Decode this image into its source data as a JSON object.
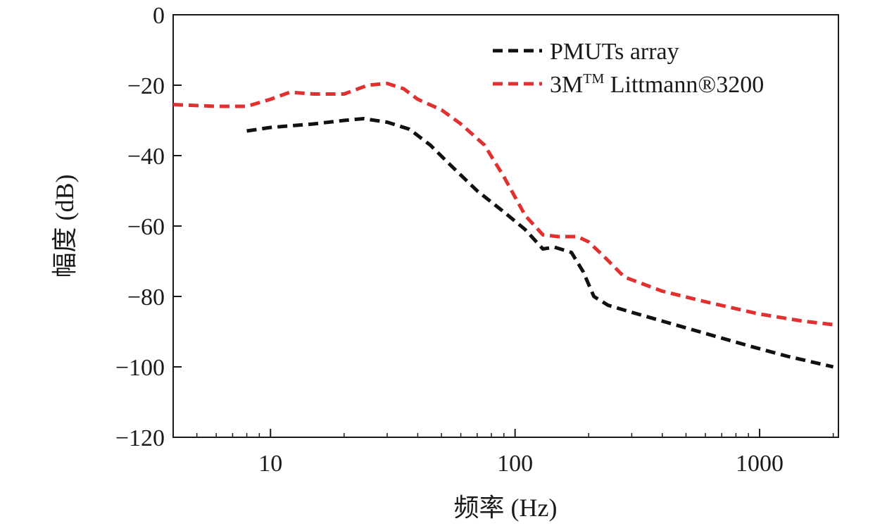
{
  "chart_data": {
    "type": "line",
    "title": "",
    "xlabel": "频率 (Hz)",
    "ylabel": "幅度 (dB)",
    "xscale": "log",
    "xlim": [
      4,
      2100
    ],
    "ylim": [
      -120,
      0
    ],
    "xticks": [
      10,
      100,
      1000
    ],
    "xtick_labels": [
      "10",
      "100",
      "1000"
    ],
    "yticks": [
      0,
      -20,
      -40,
      -60,
      -80,
      -100,
      -120
    ],
    "ytick_labels": [
      "0",
      "−20",
      "−40",
      "−60",
      "−80",
      "−100",
      "−120"
    ],
    "grid": false,
    "legend_position": "top-right",
    "series": [
      {
        "name": "PMUTs array",
        "color": "#111111",
        "line_style": "dashed",
        "x": [
          8,
          10,
          15,
          20,
          24,
          30,
          37,
          45,
          55,
          70,
          90,
          110,
          130,
          145,
          170,
          190,
          210,
          240,
          300,
          400,
          600,
          900,
          1300,
          2000
        ],
        "y": [
          -33,
          -32,
          -31,
          -30,
          -29.5,
          -30.5,
          -32.5,
          -37,
          -43,
          -50,
          -56,
          -61,
          -66.5,
          -66,
          -67.5,
          -73,
          -80,
          -82.5,
          -84.5,
          -87,
          -90.5,
          -94,
          -97,
          -100
        ]
      },
      {
        "name_parts": [
          "3M",
          "TM",
          " Littmann®3200"
        ],
        "color": "#e03030",
        "line_style": "dashed",
        "x": [
          4,
          6,
          8,
          10,
          12,
          15,
          20,
          25,
          30,
          35,
          40,
          50,
          60,
          75,
          90,
          110,
          130,
          150,
          180,
          200,
          230,
          280,
          400,
          600,
          1000,
          1500,
          2000
        ],
        "y": [
          -25.5,
          -26,
          -26,
          -24,
          -22,
          -22.5,
          -22.5,
          -20,
          -19.5,
          -21,
          -24,
          -27,
          -31,
          -37,
          -46,
          -57,
          -62.5,
          -63,
          -63,
          -64.5,
          -68.5,
          -74.5,
          -78.5,
          -81.5,
          -85,
          -87,
          -88
        ]
      }
    ]
  }
}
